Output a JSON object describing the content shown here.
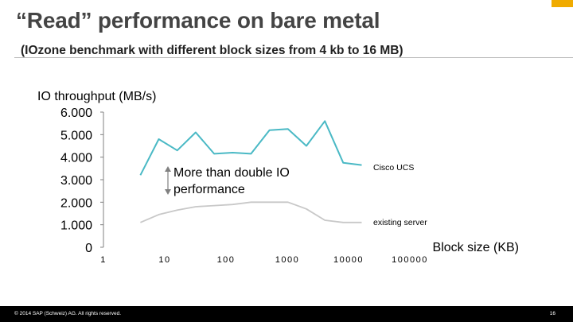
{
  "slide": {
    "title": "“Read” performance on bare metal",
    "subtitle": "(IOzone benchmark with different block sizes from 4 kb to 16 MB)",
    "footer": "© 2014 SAP (Schweiz) AG. All rights reserved.",
    "page_number": "16"
  },
  "colors": {
    "accent": "#f0ab00",
    "cisco_ucs": "#4ab9c5",
    "existing_server": "#c8c8c8",
    "axis": "#808080"
  },
  "chart_data": {
    "type": "line",
    "ylabel": "IO throughput (MB/s)",
    "xlabel": "Block size (KB)",
    "x_scale": "log",
    "y_ticks": [
      "0",
      "1.000",
      "2.000",
      "3.000",
      "4.000",
      "5.000",
      "6.000"
    ],
    "x_ticks": [
      "1",
      "10",
      "100",
      "1000",
      "10000",
      "100000"
    ],
    "ylim": [
      0,
      6000
    ],
    "xlim": [
      1,
      100000
    ],
    "series": [
      {
        "name": "Cisco UCS",
        "x": [
          4,
          8,
          16,
          32,
          64,
          128,
          256,
          512,
          1024,
          2048,
          4096,
          8192,
          16384
        ],
        "values": [
          3200,
          4800,
          4300,
          5100,
          4150,
          4200,
          4150,
          5200,
          5250,
          4500,
          5600,
          3750,
          3650
        ]
      },
      {
        "name": "existing server",
        "x": [
          4,
          8,
          16,
          32,
          64,
          128,
          256,
          512,
          1024,
          2048,
          4096,
          8192,
          16384
        ],
        "values": [
          1100,
          1450,
          1650,
          1800,
          1850,
          1900,
          2000,
          2000,
          2000,
          1700,
          1200,
          1100,
          1100
        ]
      }
    ],
    "annotation": {
      "text_line1": "More than double IO",
      "text_line2": "performance"
    }
  }
}
